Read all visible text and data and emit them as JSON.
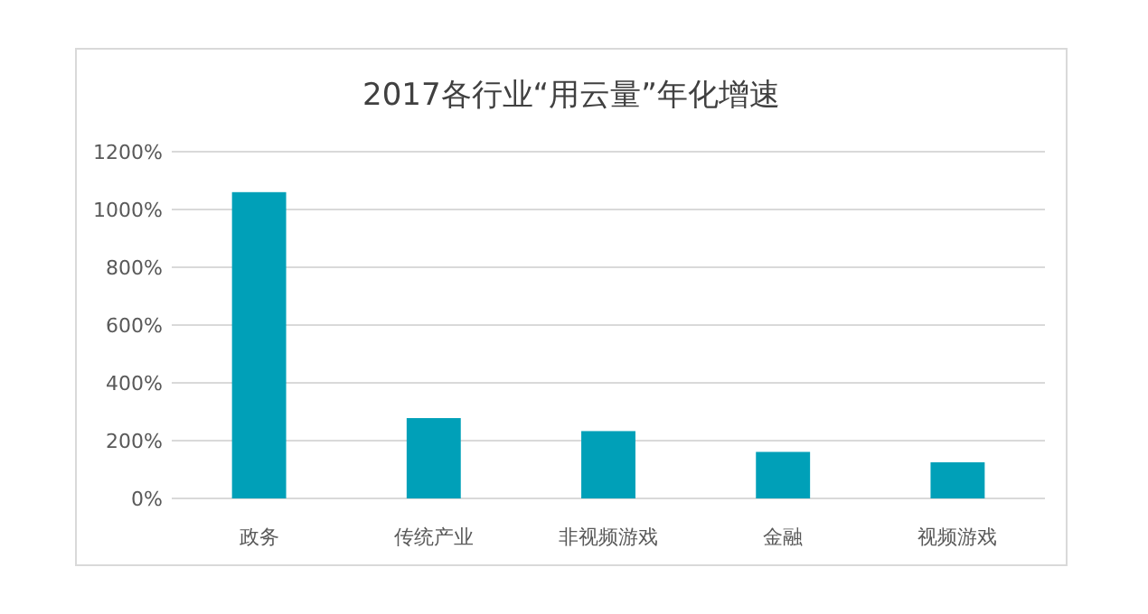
{
  "chart_data": {
    "type": "bar",
    "title": "2017各行业“用云量”年化增速",
    "categories": [
      "政务",
      "传统产业",
      "非视频游戏",
      "金融",
      "视频游戏"
    ],
    "values": [
      1060,
      278,
      233,
      161,
      125
    ],
    "color": "#00a0b8",
    "ylim": [
      0,
      1200
    ],
    "yticks": [
      {
        "value": 0,
        "label": "0%"
      },
      {
        "value": 200,
        "label": "200%"
      },
      {
        "value": 400,
        "label": "400%"
      },
      {
        "value": 600,
        "label": "600%"
      },
      {
        "value": 800,
        "label": "800%"
      },
      {
        "value": 1000,
        "label": "1000%"
      },
      {
        "value": 1200,
        "label": "1200%"
      }
    ],
    "grid": "y"
  }
}
